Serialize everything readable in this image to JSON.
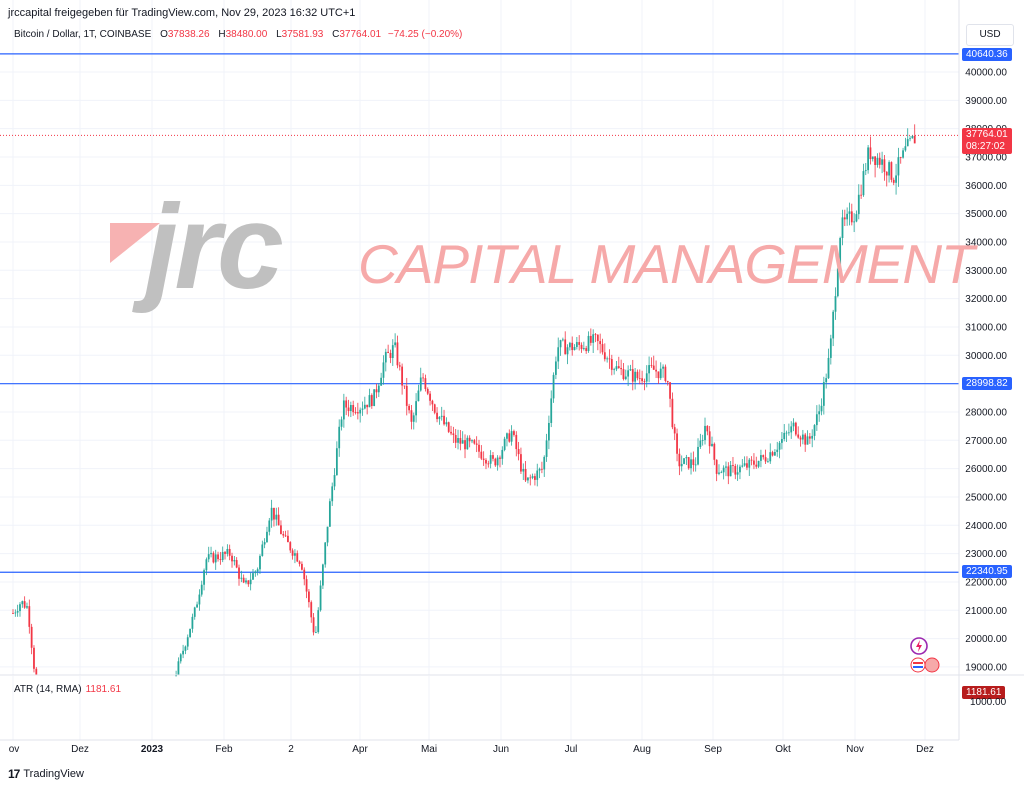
{
  "header": {
    "publisher": "jrccapital freigegeben für TradingView.com, Nov 29, 2023 16:32 UTC+1"
  },
  "symbol": {
    "name": "Bitcoin / Dollar, 1T, COINBASE",
    "open_label": "O",
    "open": "37838.26",
    "high_label": "H",
    "high": "38480.00",
    "low_label": "L",
    "low": "37581.93",
    "close_label": "C",
    "close": "37764.01",
    "change": "−74.25 (−0.20%)"
  },
  "currency": "USD",
  "watermark": {
    "logo_text": "jrc",
    "company_text": "CAPITAL MANAGEMENT"
  },
  "price_badges": {
    "line_top": "40640.36",
    "line_mid": "28998.82",
    "line_low": "22340.95",
    "last_price": "37764.01",
    "countdown": "08:27:02"
  },
  "indicator": {
    "label": "ATR (14, RMA)",
    "value": "1181.61",
    "axis_value": "1181.61",
    "axis_tick": "1000.00"
  },
  "footer": {
    "brand": "TradingView",
    "logo_glyph": "17"
  },
  "colors": {
    "up": "#26a69a",
    "down": "#f23645",
    "hline": "#2962ff",
    "watermark_red": "#f7b2b2",
    "watermark_gray": "#c0c0c0"
  },
  "chart_data": {
    "type": "candlestick",
    "title": "Bitcoin / Dollar, 1T, COINBASE",
    "ylim": [
      18600,
      41300
    ],
    "y_ticks": [
      19000,
      20000,
      21000,
      22000,
      23000,
      24000,
      25000,
      26000,
      27000,
      28000,
      29000,
      30000,
      31000,
      32000,
      33000,
      34000,
      35000,
      36000,
      37000,
      38000,
      39000,
      40000
    ],
    "x_tick_labels": [
      "ov",
      "Dez",
      "2023",
      "Feb",
      "2",
      "Apr",
      "Mai",
      "Jun",
      "Jul",
      "Aug",
      "Sep",
      "Okt",
      "Nov",
      "Dez"
    ],
    "horizontal_lines": [
      40640.36,
      28998.82,
      22340.95
    ],
    "last_price": 37764.01,
    "grid": true,
    "close_path": [
      [
        0,
        20900
      ],
      [
        0.12,
        21300
      ],
      [
        0.22,
        21100
      ],
      [
        0.36,
        18000
      ],
      [
        2.0,
        16900
      ],
      [
        2.3,
        18500
      ],
      [
        2.6,
        21000
      ],
      [
        2.75,
        22800
      ],
      [
        3.1,
        23000
      ],
      [
        3.3,
        21800
      ],
      [
        3.5,
        22500
      ],
      [
        3.7,
        24600
      ],
      [
        3.9,
        23500
      ],
      [
        4.15,
        22700
      ],
      [
        4.35,
        20000
      ],
      [
        4.55,
        24500
      ],
      [
        4.75,
        28200
      ],
      [
        5.0,
        28200
      ],
      [
        5.2,
        28500
      ],
      [
        5.35,
        29800
      ],
      [
        5.5,
        30300
      ],
      [
        5.75,
        27500
      ],
      [
        5.9,
        29300
      ],
      [
        6.1,
        28000
      ],
      [
        6.35,
        27000
      ],
      [
        6.6,
        26800
      ],
      [
        6.9,
        26200
      ],
      [
        7.15,
        27300
      ],
      [
        7.35,
        25500
      ],
      [
        7.6,
        26000
      ],
      [
        7.8,
        30300
      ],
      [
        8.05,
        30300
      ],
      [
        8.35,
        30500
      ],
      [
        8.65,
        29500
      ],
      [
        8.95,
        29200
      ],
      [
        9.15,
        29500
      ],
      [
        9.35,
        29300
      ],
      [
        9.5,
        26200
      ],
      [
        9.75,
        26200
      ],
      [
        9.9,
        27600
      ],
      [
        10.05,
        26000
      ],
      [
        10.25,
        25900
      ],
      [
        10.5,
        26100
      ],
      [
        10.75,
        26400
      ],
      [
        10.95,
        26900
      ],
      [
        11.15,
        27500
      ],
      [
        11.35,
        26900
      ],
      [
        11.5,
        28000
      ],
      [
        11.65,
        30000
      ],
      [
        11.8,
        34500
      ],
      [
        12.0,
        35000
      ],
      [
        12.2,
        37200
      ],
      [
        12.4,
        36800
      ],
      [
        12.55,
        36300
      ],
      [
        12.72,
        37200
      ],
      [
        12.88,
        37764
      ]
    ]
  }
}
